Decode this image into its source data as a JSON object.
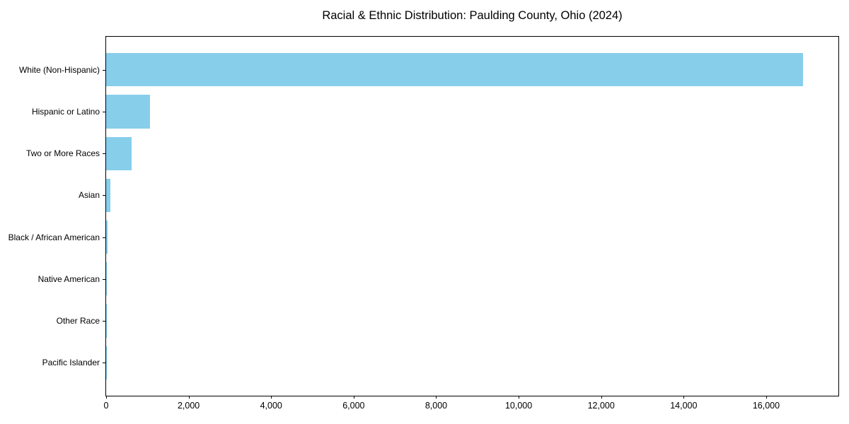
{
  "chart_data": {
    "type": "bar",
    "orientation": "horizontal",
    "title": "Racial & Ethnic Distribution: Paulding County, Ohio (2024)",
    "categories": [
      "White (Non-Hispanic)",
      "Hispanic or Latino",
      "Two or More Races",
      "Asian",
      "Black / African American",
      "Native American",
      "Other Race",
      "Pacific Islander"
    ],
    "values": [
      16900,
      1065,
      610,
      110,
      30,
      25,
      15,
      5
    ],
    "xlabel": "",
    "ylabel": "",
    "xlim": [
      0,
      17750
    ],
    "xticks": [
      0,
      2000,
      4000,
      6000,
      8000,
      10000,
      12000,
      14000,
      16000
    ],
    "xtick_labels": [
      "0",
      "2,000",
      "4,000",
      "6,000",
      "8,000",
      "10,000",
      "12,000",
      "14,000",
      "16,000"
    ],
    "bar_color": "#87CEEB",
    "axis_color": "#000000",
    "text_color": "#000000",
    "background_color": "#FFFFFF",
    "grid": false,
    "legend": "none"
  }
}
